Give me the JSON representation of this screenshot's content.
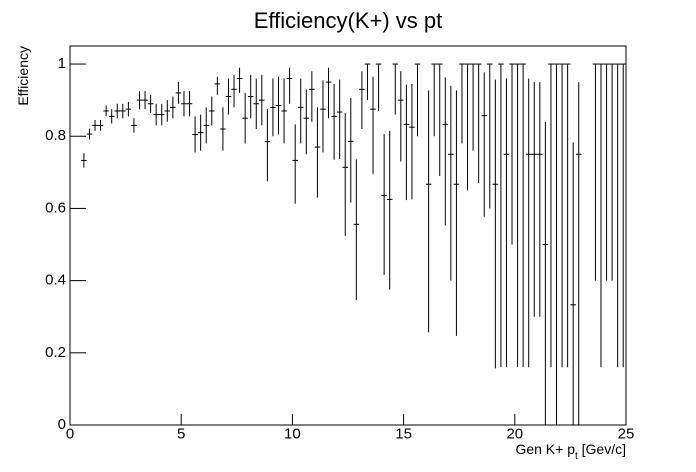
{
  "chart_data": {
    "type": "errorbar",
    "title": "Efficiency(K+) vs pt",
    "y_label": "Efficiency",
    "x_label": {
      "text": "Gen K+ p",
      "subscript": "t",
      "suffix": " [Gev/c]"
    },
    "color": "#000000",
    "xlim": [
      0,
      25
    ],
    "xticks": [
      0,
      5,
      10,
      15,
      20,
      25
    ],
    "ylim": [
      0,
      1.05
    ],
    "yticks": [
      0,
      0.2,
      0.4,
      0.6,
      0.8,
      1
    ],
    "x_error": 0.125,
    "x": [
      0.625,
      0.875,
      1.125,
      1.375,
      1.625,
      1.875,
      2.125,
      2.375,
      2.625,
      2.875,
      3.125,
      3.375,
      3.625,
      3.875,
      4.125,
      4.375,
      4.625,
      4.875,
      5.125,
      5.375,
      5.625,
      5.875,
      6.125,
      6.375,
      6.625,
      6.875,
      7.125,
      7.375,
      7.625,
      7.875,
      8.125,
      8.375,
      8.625,
      8.875,
      9.125,
      9.375,
      9.625,
      9.875,
      10.125,
      10.375,
      10.625,
      10.875,
      11.125,
      11.375,
      11.625,
      11.875,
      12.125,
      12.375,
      12.625,
      12.875,
      13.125,
      13.375,
      13.625,
      13.875,
      14.125,
      14.375,
      14.625,
      14.875,
      15.125,
      15.375,
      15.625,
      16.125,
      16.375,
      16.625,
      16.875,
      17.125,
      17.375,
      17.625,
      17.875,
      18.125,
      18.375,
      18.625,
      18.875,
      19.125,
      19.375,
      19.625,
      19.875,
      20.125,
      20.375,
      20.625,
      20.875,
      21.125,
      21.375,
      21.625,
      21.875,
      22.125,
      22.375,
      22.625,
      22.875,
      23.625,
      23.875,
      24.125,
      24.375,
      24.625,
      24.875
    ],
    "y": [
      0.733,
      0.806,
      0.83,
      0.83,
      0.87,
      0.855,
      0.87,
      0.87,
      0.875,
      0.83,
      0.9,
      0.9,
      0.89,
      0.86,
      0.86,
      0.87,
      0.88,
      0.92,
      0.89,
      0.89,
      0.805,
      0.81,
      0.83,
      0.87,
      0.945,
      0.82,
      0.91,
      0.93,
      0.96,
      0.85,
      0.91,
      0.89,
      0.9,
      0.785,
      0.88,
      0.885,
      0.87,
      0.96,
      0.733,
      0.88,
      0.85,
      0.93,
      0.77,
      0.875,
      0.95,
      0.855,
      0.867,
      0.714,
      0.786,
      0.556,
      0.93,
      1,
      0.875,
      1,
      0.636,
      0.625,
      1,
      0.9,
      0.833,
      0.825,
      1,
      0.667,
      1,
      1,
      0.833,
      0.75,
      0.667,
      1,
      1,
      1,
      1,
      0.857,
      1,
      0.667,
      1,
      0.75,
      1,
      1,
      1,
      0.75,
      0.75,
      0.75,
      0.5,
      1,
      1,
      1,
      1,
      0.333,
      0.75,
      1,
      1,
      1,
      1,
      1,
      1
    ],
    "y_err_low": [
      0.02,
      0.015,
      0.015,
      0.015,
      0.015,
      0.02,
      0.02,
      0.02,
      0.02,
      0.02,
      0.025,
      0.025,
      0.025,
      0.03,
      0.03,
      0.03,
      0.03,
      0.03,
      0.035,
      0.035,
      0.05,
      0.05,
      0.05,
      0.04,
      0.03,
      0.06,
      0.05,
      0.05,
      0.04,
      0.07,
      0.06,
      0.07,
      0.07,
      0.11,
      0.08,
      0.08,
      0.09,
      0.07,
      0.12,
      0.1,
      0.1,
      0.09,
      0.14,
      0.12,
      0.1,
      0.12,
      0.13,
      0.19,
      0.17,
      0.21,
      0.11,
      0.1,
      0.18,
      0.13,
      0.22,
      0.25,
      0.14,
      0.17,
      0.21,
      0.2,
      0.2,
      0.41,
      0.2,
      0.31,
      0.28,
      0.35,
      0.42,
      0.22,
      0.35,
      0.24,
      0.33,
      0.28,
      0.4,
      0.51,
      0.84,
      0.59,
      0.5,
      0.84,
      0.84,
      0.59,
      0.45,
      0.45,
      0.5,
      0.84,
      1,
      0.84,
      0.84,
      0.333,
      0.75,
      0.6,
      0.84,
      0.6,
      0.6,
      0.84,
      0.84
    ],
    "y_err_high": [
      0.02,
      0.015,
      0.015,
      0.015,
      0.015,
      0.02,
      0.02,
      0.02,
      0.02,
      0.02,
      0.025,
      0.025,
      0.025,
      0.03,
      0.03,
      0.03,
      0.03,
      0.03,
      0.035,
      0.035,
      0.05,
      0.05,
      0.05,
      0.04,
      0.02,
      0.06,
      0.05,
      0.04,
      0.03,
      0.07,
      0.06,
      0.07,
      0.07,
      0.09,
      0.08,
      0.08,
      0.09,
      0.03,
      0.1,
      0.08,
      0.08,
      0.05,
      0.11,
      0.08,
      0.04,
      0.09,
      0.09,
      0.15,
      0.12,
      0.18,
      0.05,
      0,
      0.09,
      0,
      0.17,
      0.19,
      0,
      0.08,
      0.11,
      0.12,
      0,
      0.26,
      0,
      0,
      0.13,
      0.19,
      0.26,
      0,
      0,
      0,
      0,
      0.12,
      0,
      0.29,
      0,
      0.21,
      0,
      0,
      0,
      0.21,
      0.2,
      0.2,
      0.34,
      0,
      0,
      0,
      0,
      0.45,
      0.2,
      0,
      0,
      0,
      0,
      0,
      0
    ]
  }
}
